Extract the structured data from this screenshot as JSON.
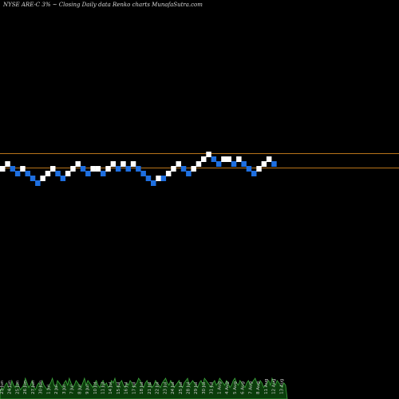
{
  "header": {
    "title": "NYSE ARE-C 3% ~  Closing Daily data  Renko  charts MunafaSutra.com"
  },
  "colors": {
    "background": "#000000",
    "up_brick": "#ffffff",
    "down_brick": "#1e6fe0",
    "reference_line": "#b8741a",
    "volume_fill": "#0b3d0b",
    "volume_edge": "#3fa83f",
    "label_color": "#cfcfcf"
  },
  "chart_data": {
    "type": "renko",
    "reference_levels": [
      1,
      4
    ],
    "bricks": [
      {
        "level": 3,
        "dir": "up"
      },
      {
        "level": 4,
        "dir": "up"
      },
      {
        "level": 3,
        "dir": "down"
      },
      {
        "level": 2,
        "dir": "down"
      },
      {
        "level": 3,
        "dir": "up"
      },
      {
        "level": 2,
        "dir": "down"
      },
      {
        "level": 1,
        "dir": "down"
      },
      {
        "level": 0,
        "dir": "down"
      },
      {
        "level": 1,
        "dir": "up"
      },
      {
        "level": 2,
        "dir": "up"
      },
      {
        "level": 3,
        "dir": "up"
      },
      {
        "level": 2,
        "dir": "down"
      },
      {
        "level": 1,
        "dir": "down"
      },
      {
        "level": 2,
        "dir": "up"
      },
      {
        "level": 3,
        "dir": "up"
      },
      {
        "level": 4,
        "dir": "up"
      },
      {
        "level": 3,
        "dir": "down"
      },
      {
        "level": 2,
        "dir": "down"
      },
      {
        "level": 3,
        "dir": "up"
      },
      {
        "level": 3,
        "dir": "up"
      },
      {
        "level": 2,
        "dir": "down"
      },
      {
        "level": 3,
        "dir": "up"
      },
      {
        "level": 4,
        "dir": "up"
      },
      {
        "level": 3,
        "dir": "down"
      },
      {
        "level": 4,
        "dir": "up"
      },
      {
        "level": 3,
        "dir": "down"
      },
      {
        "level": 4,
        "dir": "up"
      },
      {
        "level": 3,
        "dir": "down"
      },
      {
        "level": 2,
        "dir": "down"
      },
      {
        "level": 1,
        "dir": "down"
      },
      {
        "level": 0,
        "dir": "down"
      },
      {
        "level": 1,
        "dir": "up"
      },
      {
        "level": 1,
        "dir": "down"
      },
      {
        "level": 2,
        "dir": "up"
      },
      {
        "level": 3,
        "dir": "up"
      },
      {
        "level": 4,
        "dir": "up"
      },
      {
        "level": 3,
        "dir": "down"
      },
      {
        "level": 2,
        "dir": "down"
      },
      {
        "level": 3,
        "dir": "up"
      },
      {
        "level": 4,
        "dir": "up"
      },
      {
        "level": 5,
        "dir": "up"
      },
      {
        "level": 6,
        "dir": "up"
      },
      {
        "level": 5,
        "dir": "down"
      },
      {
        "level": 4,
        "dir": "down"
      },
      {
        "level": 5,
        "dir": "up"
      },
      {
        "level": 5,
        "dir": "up"
      },
      {
        "level": 4,
        "dir": "down"
      },
      {
        "level": 5,
        "dir": "up"
      },
      {
        "level": 4,
        "dir": "down"
      },
      {
        "level": 3,
        "dir": "down"
      },
      {
        "level": 2,
        "dir": "down"
      },
      {
        "level": 3,
        "dir": "up"
      },
      {
        "level": 4,
        "dir": "up"
      },
      {
        "level": 5,
        "dir": "up"
      },
      {
        "level": 4,
        "dir": "down"
      }
    ],
    "volume": [
      3,
      5,
      4,
      6,
      7,
      5,
      4,
      8,
      6,
      5,
      7,
      6,
      4,
      5,
      6,
      9,
      7,
      5,
      6,
      8,
      5,
      4,
      6,
      7,
      5,
      8,
      6,
      5,
      4,
      6,
      7,
      9,
      6,
      5,
      8,
      7,
      6,
      5,
      7,
      8,
      6,
      9,
      7,
      5,
      6,
      8,
      7,
      6,
      5,
      7,
      9,
      6,
      8,
      7,
      6,
      5,
      7,
      8,
      6,
      5,
      7,
      8,
      6,
      7,
      5,
      6,
      8,
      7,
      9,
      6,
      5,
      7,
      8,
      6,
      5,
      7,
      6,
      8,
      7,
      5,
      6,
      7,
      9,
      8,
      6,
      5,
      7,
      8,
      6,
      7,
      5,
      6,
      8,
      7,
      6,
      5,
      7,
      8,
      9,
      7,
      6,
      8,
      7,
      5,
      6,
      7,
      8,
      6,
      5,
      7,
      8,
      9,
      6,
      7,
      8,
      7,
      6,
      5,
      7,
      8,
      6,
      9,
      8,
      7,
      6,
      5,
      7,
      8,
      6,
      7,
      9,
      8,
      7,
      6,
      8,
      7,
      5,
      6,
      8,
      9,
      7,
      6,
      8,
      7,
      6,
      5,
      7,
      8,
      6,
      7,
      8,
      9,
      7,
      6,
      8,
      7,
      5,
      6,
      7,
      8,
      6,
      9,
      7,
      6,
      8,
      7,
      6,
      5,
      7,
      6
    ],
    "date_labels": [
      "23 Jun",
      "24 Jun",
      "25 Jun",
      "26 Jun",
      "27 Jun",
      "30 Jun",
      "1 Jul",
      "2 Jul",
      "3 Jul",
      "7 Jul",
      "8 Jul",
      "9 Jul",
      "10 Jul",
      "11 Jul",
      "14 Jul",
      "15 Jul",
      "16 Jul",
      "17 Jul",
      "18 Jul",
      "21 Jul",
      "22 Jul",
      "23 Jul",
      "24 Jul",
      "25 Jul",
      "28 Jul",
      "29 Jul",
      "30 Jul",
      "31 Jul",
      "1 Aug",
      "4 Aug",
      "5 Aug",
      "6 Aug",
      "7 Aug",
      "8 Aug",
      "11 Aug",
      "12 Aug",
      "13 Aug"
    ],
    "title": "NYSE ARE-C 3% ~  Closing Daily data  Renko  charts MunafaSutra.com",
    "xlabel": "",
    "ylabel": ""
  }
}
